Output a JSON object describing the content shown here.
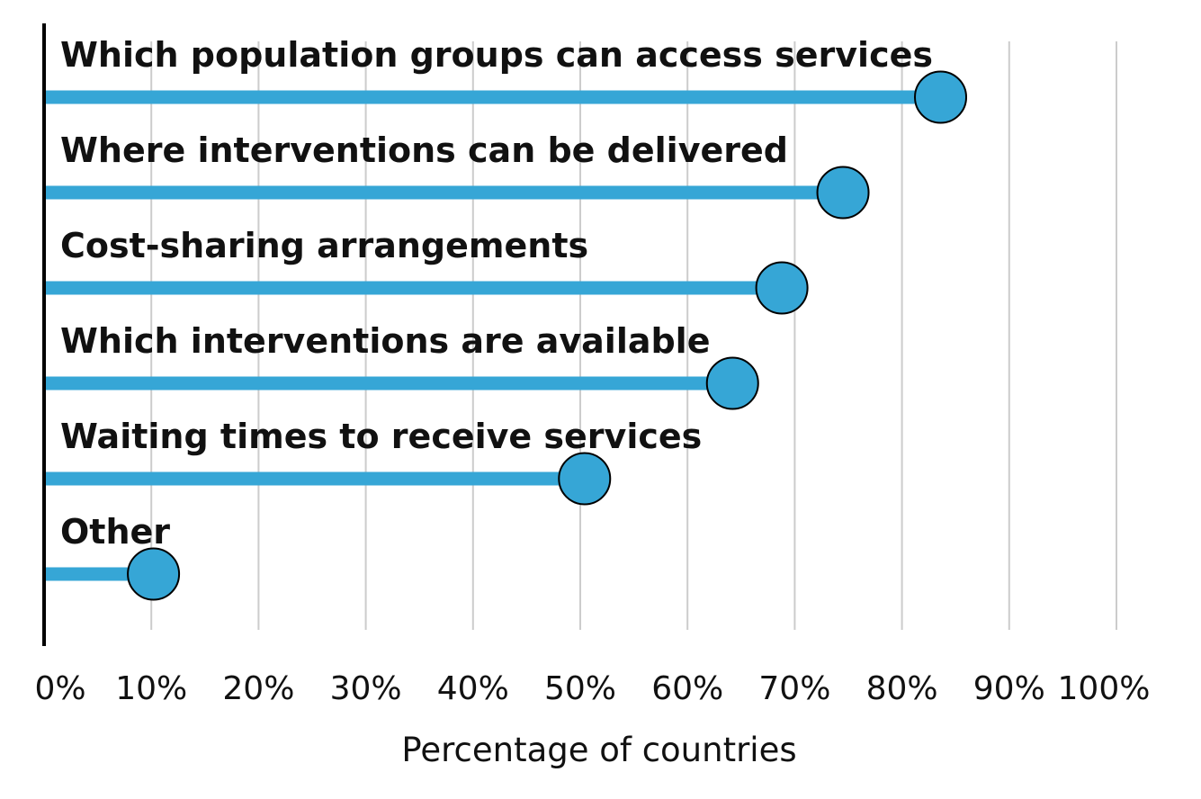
{
  "chart_data": {
    "type": "lollipop",
    "title": "",
    "xlabel": "Percentage of countries",
    "ylabel": "",
    "xlim": [
      0,
      100
    ],
    "grid": "vertical",
    "color": "#36a6d6",
    "categories": [
      "Which population groups can access services",
      "Where interventions can be delivered",
      "Cost-sharing arrangements",
      "Which interventions are available",
      "Waiting times to receive services",
      "Other"
    ],
    "values": [
      83.6,
      74.5,
      68.8,
      64.2,
      50.4,
      10.2
    ],
    "x_ticks": [
      "0%",
      "10%",
      "20%",
      "30%",
      "40%",
      "50%",
      "60%",
      "70%",
      "80%",
      "90%",
      "100%"
    ]
  }
}
